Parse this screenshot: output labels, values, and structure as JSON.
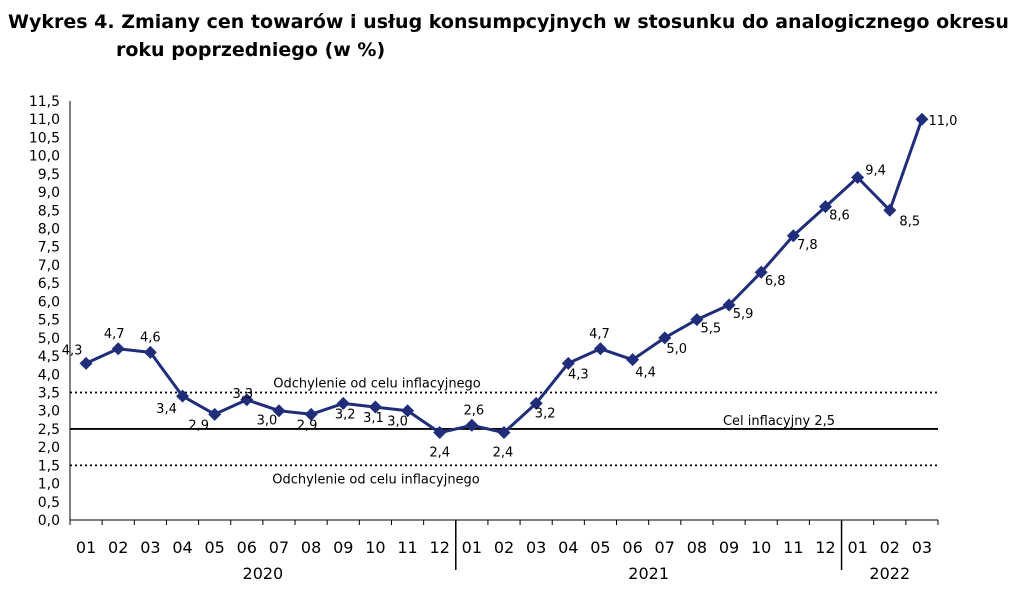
{
  "title": {
    "line1": "Wykres 4. Zmiany cen towarów i usług konsumpcyjnych w stosunku do analogicznego okresu",
    "line2": "roku poprzedniego (w %)"
  },
  "chart_data": {
    "type": "line",
    "title": "Wykres 4. Zmiany cen towarów i usług konsumpcyjnych w stosunku do analogicznego okresu roku poprzedniego (w %)",
    "categories": [
      "01",
      "02",
      "03",
      "04",
      "05",
      "06",
      "07",
      "08",
      "09",
      "10",
      "11",
      "12",
      "01",
      "02",
      "03",
      "04",
      "05",
      "06",
      "07",
      "08",
      "09",
      "10",
      "11",
      "12",
      "01",
      "02",
      "03"
    ],
    "years": [
      {
        "label": "2020",
        "start": 0,
        "end": 11
      },
      {
        "label": "2021",
        "start": 12,
        "end": 23
      },
      {
        "label": "2022",
        "start": 24,
        "end": 26
      }
    ],
    "series": [
      {
        "values": [
          4.3,
          4.7,
          4.6,
          3.4,
          2.9,
          3.3,
          3.0,
          2.9,
          3.2,
          3.1,
          3.0,
          2.4,
          2.6,
          2.4,
          3.2,
          4.3,
          4.7,
          4.4,
          5.0,
          5.5,
          5.9,
          6.8,
          7.8,
          8.6,
          9.4,
          8.5,
          11.0
        ],
        "labels": [
          "4,3",
          "4,7",
          "4,6",
          "3,4",
          "2,9",
          "3,3",
          "3,0",
          "2,9",
          "3,2",
          "3,1",
          "3,0",
          "2,4",
          "2,6",
          "2,4",
          "3,2",
          "4,3",
          "4,7",
          "4,4",
          "5,0",
          "5,5",
          "5,9",
          "6,8",
          "7,8",
          "8,6",
          "9,4",
          "8,5",
          "11,0"
        ],
        "color": "#1f2d7a"
      }
    ],
    "ylim": [
      0,
      11.5
    ],
    "ytick_step": 0.5,
    "yticks": [
      "0,0",
      "0,5",
      "1,0",
      "1,5",
      "2,0",
      "2,5",
      "3,0",
      "3,5",
      "4,0",
      "4,5",
      "5,0",
      "5,5",
      "6,0",
      "6,5",
      "7,0",
      "7,5",
      "8,0",
      "8,5",
      "9,0",
      "9,5",
      "10,0",
      "10,5",
      "11,0",
      "11,5"
    ],
    "reference_lines": [
      {
        "value": 3.5,
        "style": "dotted",
        "label": "Odchylenie od celu inflacyjnego"
      },
      {
        "value": 2.5,
        "style": "solid",
        "label": "Cel inflacyjny 2,5"
      },
      {
        "value": 1.5,
        "style": "dotted",
        "label": "Odchylenie od celu inflacyjnego"
      }
    ],
    "grid": false,
    "legend": "none"
  }
}
